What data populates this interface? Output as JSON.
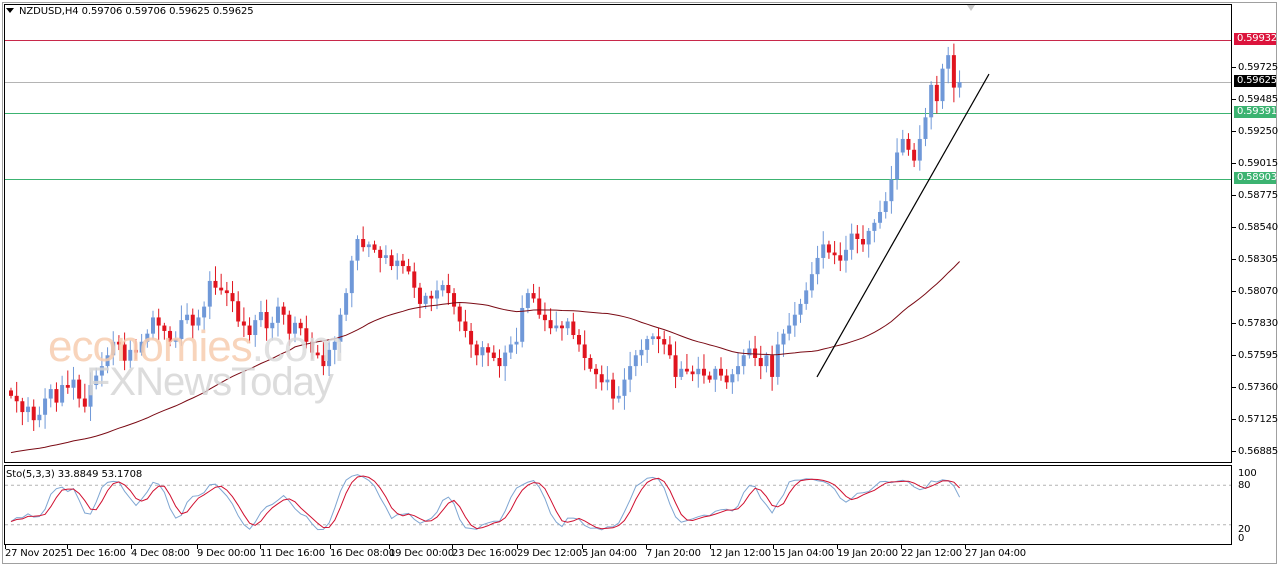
{
  "window": {
    "symbol": "NZDUSD",
    "timeframe": "H4",
    "title": "NZDUSD,H4  0.59706 0.59706 0.59625 0.59625",
    "ohlc_header": {
      "open": "0.59706",
      "high": "0.59706",
      "low": "0.59625",
      "close": "0.59625"
    }
  },
  "watermark": {
    "line1": "economies",
    "line1_suffix": ".com",
    "line2": "FXNewsToday"
  },
  "indicator": {
    "label": "Sto(5,3,3) 33.8849 53.1708",
    "name": "Sto(5,3,3)",
    "main_value": "33.8849",
    "signal_value": "53.1708",
    "levels": [
      "100",
      "80",
      "20",
      "0"
    ]
  },
  "price_axis": {
    "labels": [
      "0.59725",
      "0.59485",
      "0.59250",
      "0.59015",
      "0.58775",
      "0.58540",
      "0.58305",
      "0.58070",
      "0.57830",
      "0.57595",
      "0.57360",
      "0.57125",
      "0.56885"
    ],
    "badges": [
      {
        "value": "0.59932",
        "color": "#dc143c",
        "kind": "resistance-line"
      },
      {
        "value": "0.59625",
        "color": "#000000",
        "kind": "current-price"
      },
      {
        "value": "0.59391",
        "color": "#3cb371",
        "kind": "support-line"
      },
      {
        "value": "0.58903",
        "color": "#3cb371",
        "kind": "support-line"
      }
    ]
  },
  "time_axis": {
    "labels": [
      "27 Nov 2025",
      "1 Dec 16:00",
      "4 Dec 08:00",
      "9 Dec 00:00",
      "11 Dec 16:00",
      "16 Dec 08:00",
      "19 Dec 00:00",
      "23 Dec 16:00",
      "29 Dec 12:00",
      "5 Jan 04:00",
      "7 Jan 20:00",
      "12 Jan 12:00",
      "15 Jan 04:00",
      "19 Jan 20:00",
      "22 Jan 12:00",
      "27 Jan 04:00"
    ]
  },
  "colors": {
    "bull": "#6f98d8",
    "bear": "#e0141e",
    "ma": "#7a0a14",
    "trendline": "#000000",
    "resistance": "#c8284a",
    "support": "#3cb371",
    "bid": "#b4b4b4",
    "sto_main": "#7fa6d2",
    "sto_signal": "#d01030",
    "level_dash": "#b4b4b4"
  },
  "chart_data": {
    "type": "candlestick",
    "title": "NZDUSD,H4",
    "xlabel": "",
    "ylabel": "",
    "ylim": [
      0.56885,
      0.59932
    ],
    "grid": false,
    "x_tick_labels": [
      "27 Nov 2025",
      "1 Dec 16:00",
      "4 Dec 08:00",
      "9 Dec 00:00",
      "11 Dec 16:00",
      "16 Dec 08:00",
      "19 Dec 00:00",
      "23 Dec 16:00",
      "29 Dec 12:00",
      "5 Jan 04:00",
      "7 Jan 20:00",
      "12 Jan 12:00",
      "15 Jan 04:00",
      "19 Jan 20:00",
      "22 Jan 12:00",
      "27 Jan 04:00"
    ],
    "y_tick_labels": [
      "0.59725",
      "0.59485",
      "0.59250",
      "0.59015",
      "0.58775",
      "0.58540",
      "0.58305",
      "0.58070",
      "0.57830",
      "0.57595",
      "0.57360",
      "0.57125",
      "0.56885"
    ],
    "horizontal_lines": [
      {
        "price": 0.59932,
        "label": "0.59932",
        "color": "#c8284a"
      },
      {
        "price": 0.59625,
        "label": "0.59625",
        "color": "#b4b4b4",
        "role": "bid"
      },
      {
        "price": 0.59391,
        "label": "0.59391",
        "color": "#3cb371"
      },
      {
        "price": 0.58903,
        "label": "0.58903",
        "color": "#3cb371"
      }
    ],
    "trendline": {
      "from": {
        "x_index": 136,
        "price": 0.5744
      },
      "to": {
        "x_index": 164,
        "price": 0.5968
      }
    },
    "ohlc_header": {
      "open": 0.59706,
      "high": 0.59706,
      "low": 0.59625,
      "close": 0.59625
    },
    "closes": [
      0.573,
      0.5726,
      0.5718,
      0.5722,
      0.5712,
      0.5716,
      0.5728,
      0.5735,
      0.5725,
      0.5738,
      0.5736,
      0.5742,
      0.5728,
      0.5722,
      0.5738,
      0.5745,
      0.5752,
      0.576,
      0.577,
      0.5768,
      0.5756,
      0.5764,
      0.5762,
      0.577,
      0.5776,
      0.5788,
      0.5782,
      0.5778,
      0.577,
      0.5772,
      0.5786,
      0.579,
      0.5782,
      0.5788,
      0.5796,
      0.5815,
      0.581,
      0.5808,
      0.5806,
      0.58,
      0.5785,
      0.5782,
      0.5775,
      0.5786,
      0.5792,
      0.578,
      0.5784,
      0.5796,
      0.579,
      0.5776,
      0.5784,
      0.578,
      0.577,
      0.5762,
      0.576,
      0.5752,
      0.5764,
      0.577,
      0.579,
      0.5806,
      0.583,
      0.5846,
      0.584,
      0.5842,
      0.5838,
      0.5832,
      0.5834,
      0.5826,
      0.583,
      0.5826,
      0.5822,
      0.581,
      0.5798,
      0.5804,
      0.5802,
      0.5808,
      0.5812,
      0.5806,
      0.5796,
      0.5785,
      0.5778,
      0.5768,
      0.576,
      0.5766,
      0.5762,
      0.5758,
      0.5752,
      0.5762,
      0.5768,
      0.577,
      0.5795,
      0.5806,
      0.5802,
      0.579,
      0.5786,
      0.578,
      0.5782,
      0.578,
      0.5785,
      0.5775,
      0.5768,
      0.5758,
      0.575,
      0.5746,
      0.574,
      0.5742,
      0.5728,
      0.573,
      0.5742,
      0.5752,
      0.576,
      0.5764,
      0.5772,
      0.5774,
      0.5772,
      0.5768,
      0.576,
      0.5744,
      0.575,
      0.5748,
      0.5746,
      0.575,
      0.5745,
      0.5742,
      0.575,
      0.5745,
      0.574,
      0.5746,
      0.5752,
      0.576,
      0.5765,
      0.5758,
      0.5752,
      0.576,
      0.5744,
      0.5768,
      0.5776,
      0.5782,
      0.579,
      0.5798,
      0.5808,
      0.582,
      0.5832,
      0.5842,
      0.5836,
      0.5834,
      0.583,
      0.5838,
      0.585,
      0.5846,
      0.5842,
      0.5852,
      0.5858,
      0.5866,
      0.5874,
      0.589,
      0.591,
      0.592,
      0.5912,
      0.5904,
      0.592,
      0.5936,
      0.596,
      0.5948,
      0.5972,
      0.5982,
      0.5958,
      0.5962
    ]
  }
}
